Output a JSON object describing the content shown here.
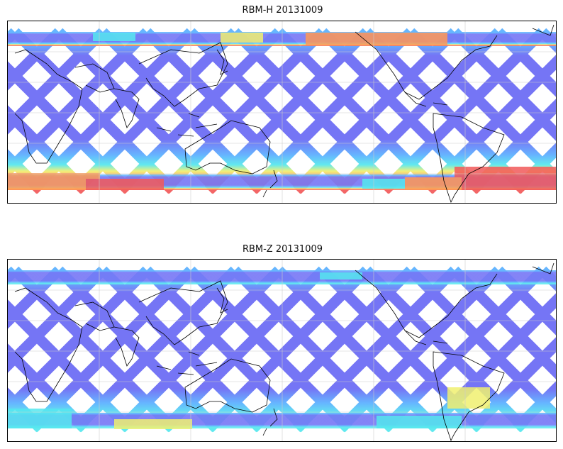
{
  "panels": [
    {
      "title": "RBM-H 20131009",
      "variant": "H"
    },
    {
      "title": "RBM-Z 20131009",
      "variant": "Z"
    }
  ],
  "colors": {
    "low": "#6a6af5",
    "mid_low": "#5ab0ff",
    "mid": "#55e8ee",
    "mid_high": "#f0f070",
    "high": "#ff9955",
    "max": "#f25a5a",
    "gridline": "#cccccc",
    "coastline": "#000000"
  },
  "gridlines": "on"
}
